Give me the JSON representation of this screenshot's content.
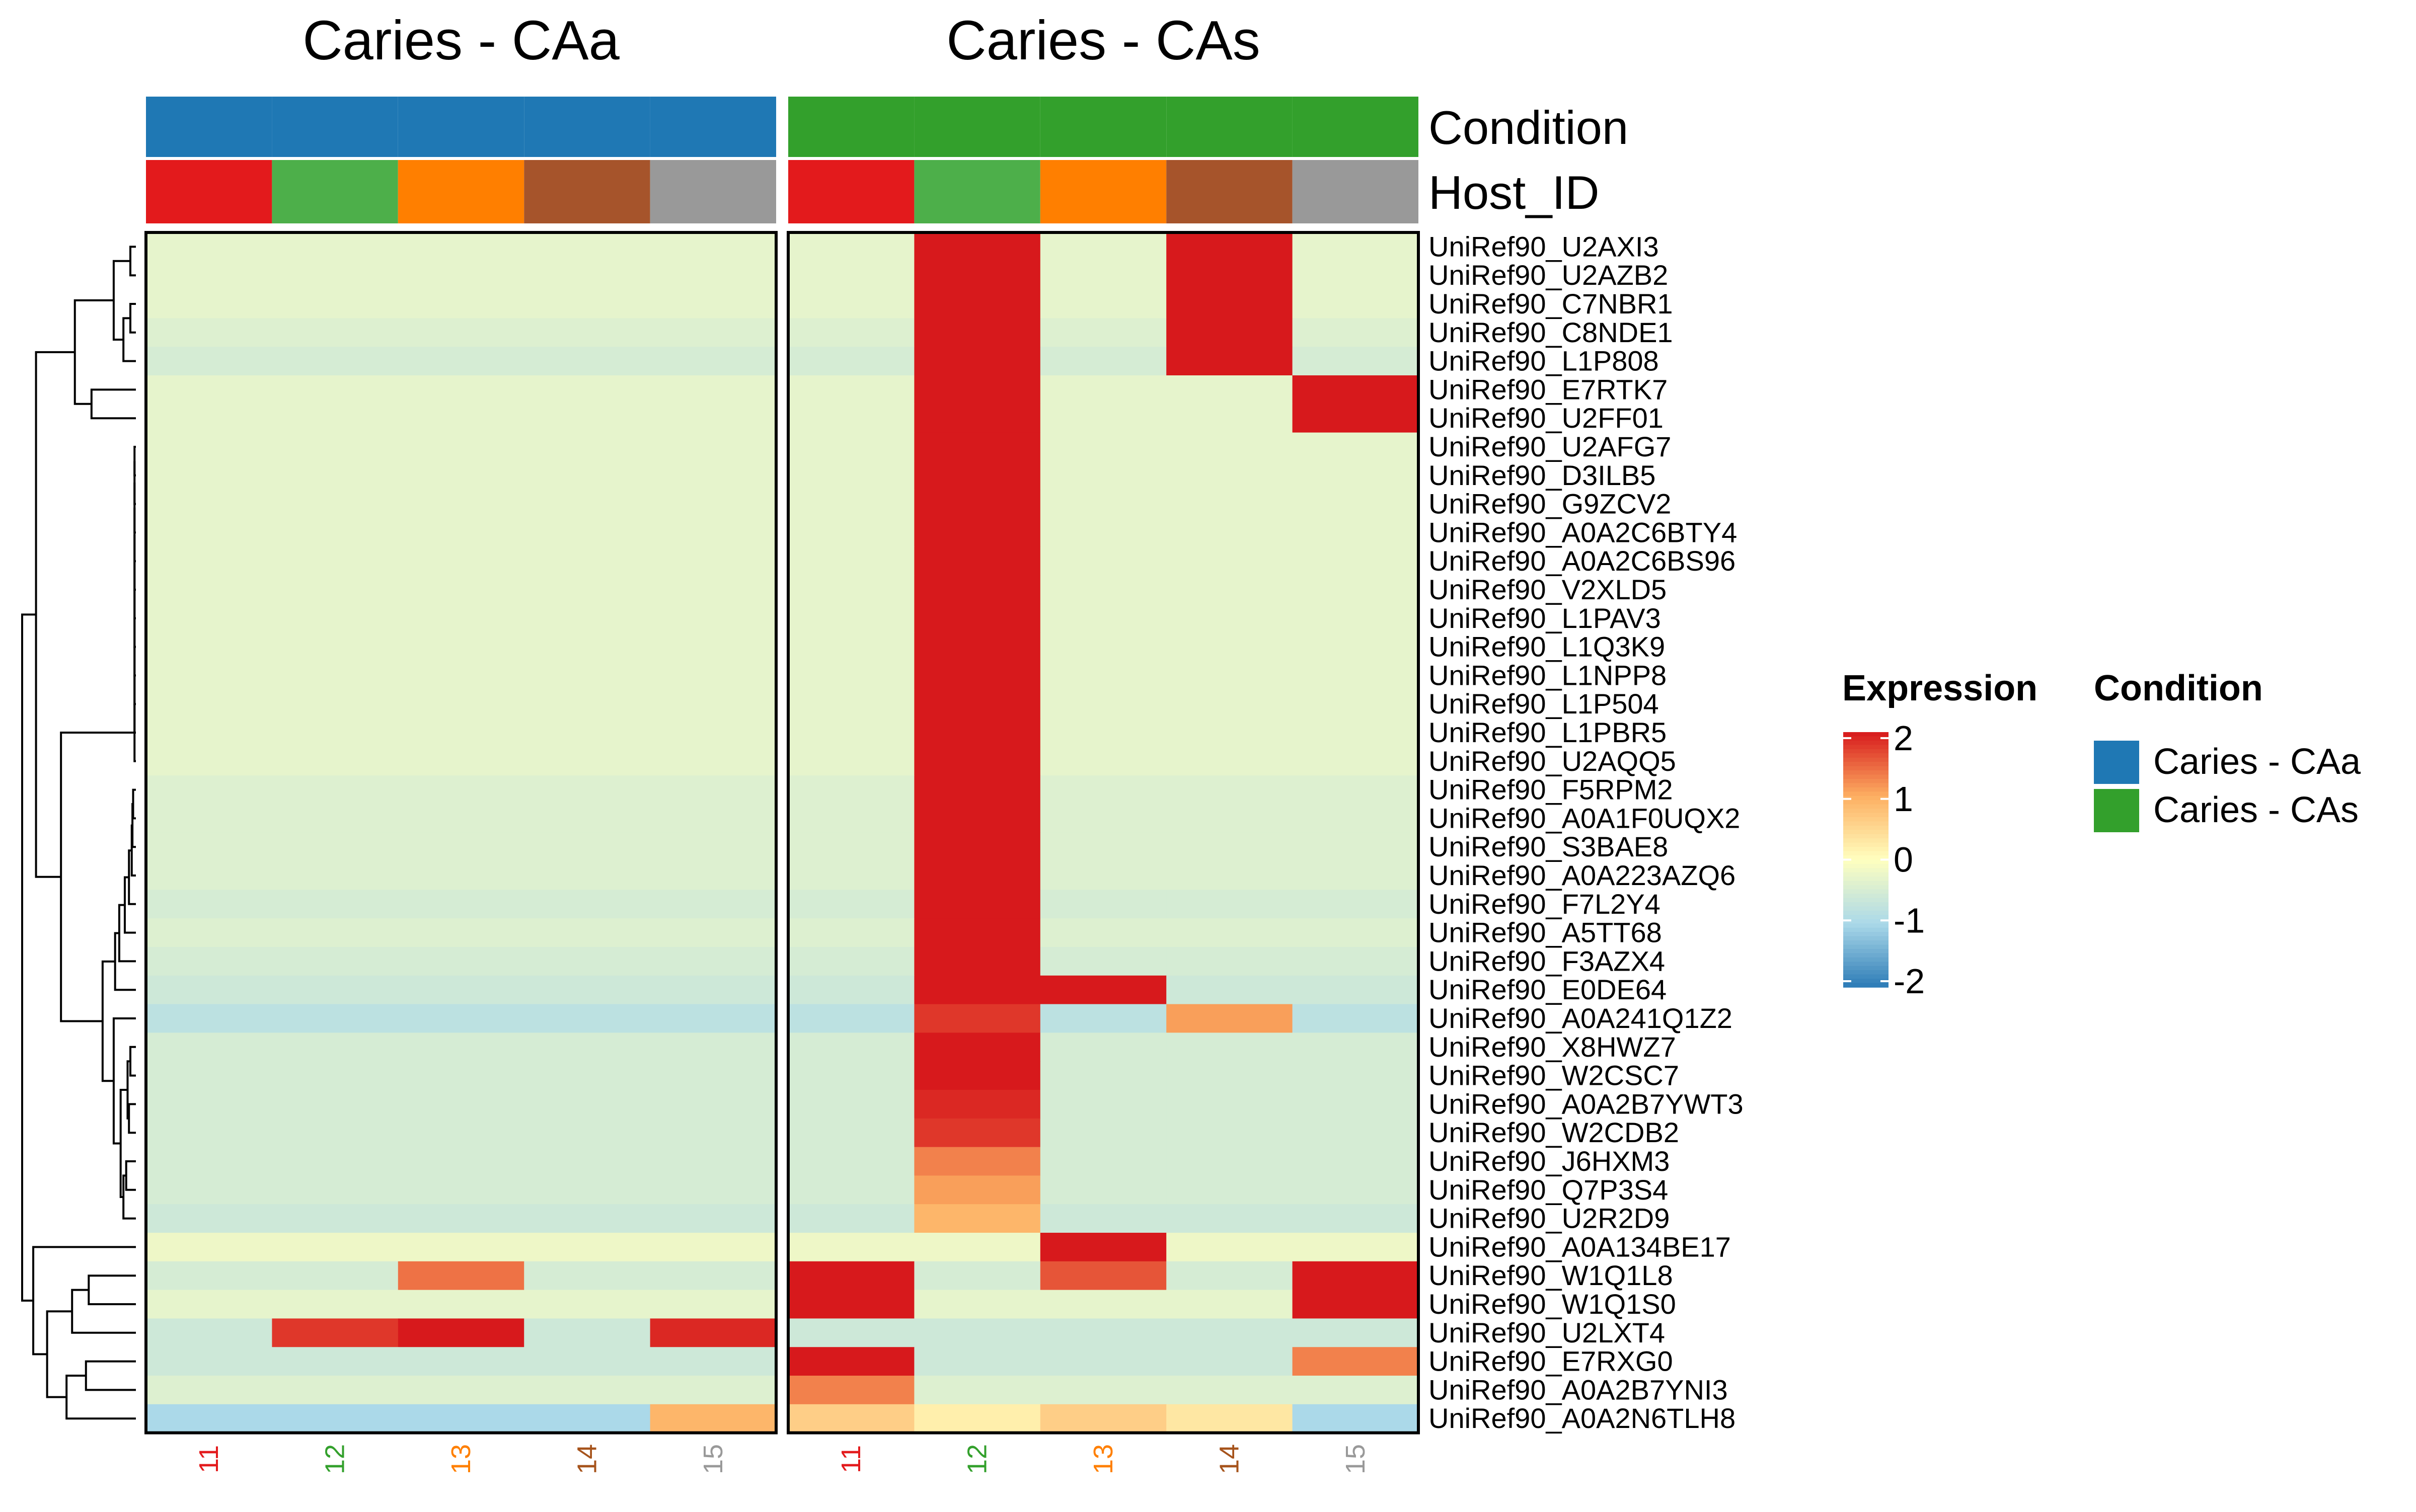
{
  "chart_data": {
    "type": "heatmap",
    "title": "",
    "xlabel": "",
    "ylabel": "",
    "column_splits": [
      "Caries - CAa",
      "Caries - CAs"
    ],
    "column_labels": [
      "11",
      "12",
      "13",
      "14",
      "15",
      "11",
      "12",
      "13",
      "14",
      "15"
    ],
    "column_label_colors": [
      "#e31a1c",
      "#33a02c",
      "#ff7f00",
      "#a6531b",
      "#999999",
      "#e31a1c",
      "#33a02c",
      "#ff7f00",
      "#a6531b",
      "#999999"
    ],
    "annotations": [
      {
        "name": "Condition",
        "values": [
          "Caries - CAa",
          "Caries - CAa",
          "Caries - CAa",
          "Caries - CAa",
          "Caries - CAa",
          "Caries - CAs",
          "Caries - CAs",
          "Caries - CAs",
          "Caries - CAs",
          "Caries - CAs"
        ]
      },
      {
        "name": "Host_ID",
        "values": [
          "11",
          "12",
          "13",
          "14",
          "15",
          "11",
          "12",
          "13",
          "14",
          "15"
        ]
      }
    ],
    "annotation_colors": {
      "Condition": {
        "Caries - CAa": "#1f78b4",
        "Caries - CAs": "#33a02c"
      },
      "Host_ID": {
        "11": "#e31a1c",
        "12": "#4daf4a",
        "13": "#ff7f00",
        "14": "#a6542b",
        "15": "#999999"
      }
    },
    "rows": [
      "UniRef90_U2AXI3",
      "UniRef90_U2AZB2",
      "UniRef90_C7NBR1",
      "UniRef90_C8NDE1",
      "UniRef90_L1P808",
      "UniRef90_E7RTK7",
      "UniRef90_U2FF01",
      "UniRef90_U2AFG7",
      "UniRef90_D3ILB5",
      "UniRef90_G9ZCV2",
      "UniRef90_A0A2C6BTY4",
      "UniRef90_A0A2C6BS96",
      "UniRef90_V2XLD5",
      "UniRef90_L1PAV3",
      "UniRef90_L1Q3K9",
      "UniRef90_L1NPP8",
      "UniRef90_L1P504",
      "UniRef90_L1PBR5",
      "UniRef90_U2AQQ5",
      "UniRef90_F5RPM2",
      "UniRef90_A0A1F0UQX2",
      "UniRef90_S3BAE8",
      "UniRef90_A0A223AZQ6",
      "UniRef90_F7L2Y4",
      "UniRef90_A5TT68",
      "UniRef90_F3AZX4",
      "UniRef90_E0DE64",
      "UniRef90_A0A241Q1Z2",
      "UniRef90_X8HWZ7",
      "UniRef90_W2CSC7",
      "UniRef90_A0A2B7YWT3",
      "UniRef90_W2CDB2",
      "UniRef90_J6HXM3",
      "UniRef90_Q7P3S4",
      "UniRef90_U2R2D9",
      "UniRef90_A0A134BE17",
      "UniRef90_W1Q1L8",
      "UniRef90_W1Q1S0",
      "UniRef90_U2LXT4",
      "UniRef90_E7RXG0",
      "UniRef90_A0A2B7YNI3",
      "UniRef90_A0A2N6TLH8"
    ],
    "values": [
      [
        -0.3,
        -0.3,
        -0.3,
        -0.3,
        -0.3,
        -0.3,
        2.9,
        -0.3,
        2.9,
        -0.3
      ],
      [
        -0.3,
        -0.3,
        -0.3,
        -0.3,
        -0.3,
        -0.3,
        2.9,
        -0.3,
        2.9,
        -0.3
      ],
      [
        -0.3,
        -0.3,
        -0.3,
        -0.3,
        -0.3,
        -0.3,
        2.9,
        -0.3,
        2.9,
        -0.3
      ],
      [
        -0.4,
        -0.4,
        -0.4,
        -0.4,
        -0.4,
        -0.4,
        2.9,
        -0.4,
        2.9,
        -0.4
      ],
      [
        -0.5,
        -0.5,
        -0.5,
        -0.5,
        -0.5,
        -0.5,
        2.9,
        -0.5,
        2.9,
        -0.5
      ],
      [
        -0.3,
        -0.3,
        -0.3,
        -0.3,
        -0.3,
        -0.3,
        2.9,
        -0.3,
        -0.3,
        2.9
      ],
      [
        -0.3,
        -0.3,
        -0.3,
        -0.3,
        -0.3,
        -0.3,
        2.9,
        -0.3,
        -0.3,
        2.9
      ],
      [
        -0.3,
        -0.3,
        -0.3,
        -0.3,
        -0.3,
        -0.3,
        2.9,
        -0.3,
        -0.3,
        -0.3
      ],
      [
        -0.3,
        -0.3,
        -0.3,
        -0.3,
        -0.3,
        -0.3,
        2.9,
        -0.3,
        -0.3,
        -0.3
      ],
      [
        -0.3,
        -0.3,
        -0.3,
        -0.3,
        -0.3,
        -0.3,
        2.9,
        -0.3,
        -0.3,
        -0.3
      ],
      [
        -0.3,
        -0.3,
        -0.3,
        -0.3,
        -0.3,
        -0.3,
        2.9,
        -0.3,
        -0.3,
        -0.3
      ],
      [
        -0.3,
        -0.3,
        -0.3,
        -0.3,
        -0.3,
        -0.3,
        2.9,
        -0.3,
        -0.3,
        -0.3
      ],
      [
        -0.3,
        -0.3,
        -0.3,
        -0.3,
        -0.3,
        -0.3,
        2.9,
        -0.3,
        -0.3,
        -0.3
      ],
      [
        -0.3,
        -0.3,
        -0.3,
        -0.3,
        -0.3,
        -0.3,
        2.9,
        -0.3,
        -0.3,
        -0.3
      ],
      [
        -0.3,
        -0.3,
        -0.3,
        -0.3,
        -0.3,
        -0.3,
        2.9,
        -0.3,
        -0.3,
        -0.3
      ],
      [
        -0.3,
        -0.3,
        -0.3,
        -0.3,
        -0.3,
        -0.3,
        2.9,
        -0.3,
        -0.3,
        -0.3
      ],
      [
        -0.3,
        -0.3,
        -0.3,
        -0.3,
        -0.3,
        -0.3,
        2.9,
        -0.3,
        -0.3,
        -0.3
      ],
      [
        -0.3,
        -0.3,
        -0.3,
        -0.3,
        -0.3,
        -0.3,
        2.9,
        -0.3,
        -0.3,
        -0.3
      ],
      [
        -0.3,
        -0.3,
        -0.3,
        -0.3,
        -0.3,
        -0.3,
        2.9,
        -0.3,
        -0.3,
        -0.3
      ],
      [
        -0.4,
        -0.4,
        -0.4,
        -0.4,
        -0.4,
        -0.4,
        2.9,
        -0.4,
        -0.4,
        -0.4
      ],
      [
        -0.4,
        -0.4,
        -0.4,
        -0.4,
        -0.4,
        -0.4,
        2.9,
        -0.4,
        -0.4,
        -0.4
      ],
      [
        -0.4,
        -0.4,
        -0.4,
        -0.4,
        -0.4,
        -0.4,
        2.9,
        -0.4,
        -0.4,
        -0.4
      ],
      [
        -0.4,
        -0.4,
        -0.4,
        -0.4,
        -0.4,
        -0.4,
        2.9,
        -0.4,
        -0.4,
        -0.4
      ],
      [
        -0.5,
        -0.5,
        -0.5,
        -0.5,
        -0.5,
        -0.5,
        2.9,
        -0.5,
        -0.5,
        -0.5
      ],
      [
        -0.4,
        -0.4,
        -0.4,
        -0.4,
        -0.4,
        -0.4,
        2.9,
        -0.4,
        -0.4,
        -0.4
      ],
      [
        -0.5,
        -0.5,
        -0.5,
        -0.5,
        -0.5,
        -0.5,
        2.9,
        -0.5,
        -0.5,
        -0.5
      ],
      [
        -0.6,
        -0.6,
        -0.6,
        -0.6,
        -0.6,
        -0.6,
        2.9,
        2.0,
        -0.6,
        -0.6
      ],
      [
        -0.8,
        -0.8,
        -0.8,
        -0.8,
        -0.8,
        -0.8,
        1.8,
        -0.8,
        1.1,
        -0.8
      ],
      [
        -0.5,
        -0.5,
        -0.5,
        -0.5,
        -0.5,
        -0.5,
        2.9,
        -0.5,
        -0.5,
        -0.5
      ],
      [
        -0.5,
        -0.5,
        -0.5,
        -0.5,
        -0.5,
        -0.5,
        2.3,
        -0.5,
        -0.5,
        -0.5
      ],
      [
        -0.5,
        -0.5,
        -0.5,
        -0.5,
        -0.5,
        -0.5,
        1.9,
        -0.5,
        -0.5,
        -0.5
      ],
      [
        -0.5,
        -0.5,
        -0.5,
        -0.5,
        -0.5,
        -0.5,
        1.8,
        -0.5,
        -0.5,
        -0.5
      ],
      [
        -0.5,
        -0.5,
        -0.5,
        -0.5,
        -0.5,
        -0.5,
        1.3,
        -0.5,
        -0.5,
        -0.5
      ],
      [
        -0.5,
        -0.5,
        -0.5,
        -0.5,
        -0.5,
        -0.5,
        1.1,
        -0.5,
        -0.5,
        -0.5
      ],
      [
        -0.6,
        -0.6,
        -0.6,
        -0.6,
        -0.6,
        -0.6,
        0.9,
        -0.6,
        -0.6,
        -0.6
      ],
      [
        -0.2,
        -0.2,
        -0.2,
        -0.2,
        -0.2,
        -0.2,
        -0.2,
        2.9,
        -0.2,
        -0.2
      ],
      [
        -0.5,
        -0.5,
        1.4,
        -0.5,
        -0.5,
        2.9,
        -0.5,
        1.6,
        -0.5,
        2.9
      ],
      [
        -0.3,
        -0.3,
        -0.3,
        -0.3,
        -0.3,
        2.2,
        -0.3,
        -0.3,
        -0.3,
        2.9
      ],
      [
        -0.6,
        1.8,
        2.6,
        -0.6,
        1.9,
        -0.6,
        -0.6,
        -0.6,
        -0.6,
        -0.6
      ],
      [
        -0.6,
        -0.6,
        -0.6,
        -0.6,
        -0.6,
        2.9,
        -0.6,
        -0.6,
        -0.6,
        1.3
      ],
      [
        -0.4,
        -0.4,
        -0.4,
        -0.4,
        -0.4,
        1.3,
        -0.4,
        -0.4,
        -0.4,
        -0.4
      ],
      [
        -1.0,
        -1.0,
        -1.0,
        -1.0,
        0.9,
        0.6,
        0.2,
        0.6,
        0.3,
        -1.0
      ]
    ],
    "color_scale": {
      "stops": [
        -2,
        -1,
        0,
        1,
        2
      ],
      "colors": [
        "#2c7bb6",
        "#abd9e9",
        "#ffffbf",
        "#fdae61",
        "#d7191c"
      ]
    },
    "legend": {
      "expression_title": "Expression",
      "expression_ticks": [
        "2",
        "1",
        "0",
        "-1",
        "-2"
      ],
      "condition_title": "Condition",
      "condition_items": [
        {
          "label": "Caries - CAa",
          "color": "#1f78b4"
        },
        {
          "label": "Caries - CAs",
          "color": "#33a02c"
        }
      ],
      "placement": "right"
    },
    "dendrogram_merges": [
      [
        0,
        1
      ],
      [
        2,
        3
      ],
      [
        -2,
        4
      ],
      [
        -1,
        -3
      ],
      [
        5,
        6
      ],
      [
        -4,
        -5
      ],
      [
        7,
        8
      ],
      [
        -7,
        9
      ],
      [
        -8,
        10
      ],
      [
        -9,
        11
      ],
      [
        -10,
        12
      ],
      [
        -11,
        13
      ],
      [
        -12,
        14
      ],
      [
        -13,
        15
      ],
      [
        -14,
        16
      ],
      [
        -15,
        17
      ],
      [
        -16,
        18
      ],
      [
        19,
        20
      ],
      [
        -18,
        21
      ],
      [
        -19,
        22
      ],
      [
        -20,
        23
      ],
      [
        -21,
        24
      ],
      [
        -22,
        25
      ],
      [
        -23,
        26
      ],
      [
        28,
        29
      ],
      [
        30,
        31
      ],
      [
        -25,
        -26
      ],
      [
        32,
        33
      ],
      [
        -28,
        34
      ],
      [
        -27,
        -29
      ],
      [
        27,
        -30
      ],
      [
        -24,
        -31
      ],
      [
        -17,
        -32
      ],
      [
        -6,
        -33
      ],
      [
        36,
        37
      ],
      [
        38,
        -35
      ],
      [
        39,
        40
      ],
      [
        -37,
        41
      ],
      [
        -38,
        -36
      ],
      [
        35,
        -39
      ],
      [
        -34,
        -40
      ]
    ],
    "dendrogram_heights": [
      0.4,
      0.4,
      0.9,
      1.6,
      3.2,
      4.4,
      0.1,
      0.1,
      0.1,
      0.1,
      0.1,
      0.1,
      0.1,
      0.1,
      0.1,
      0.1,
      0.1,
      0.2,
      0.25,
      0.3,
      0.5,
      0.8,
      1.2,
      1.5,
      0.4,
      0.5,
      0.6,
      0.7,
      0.9,
      1.1,
      1.6,
      2.4,
      5.4,
      7.2,
      3.4,
      4.6,
      3.6,
      5.0,
      6.4,
      7.4,
      8.2
    ]
  }
}
